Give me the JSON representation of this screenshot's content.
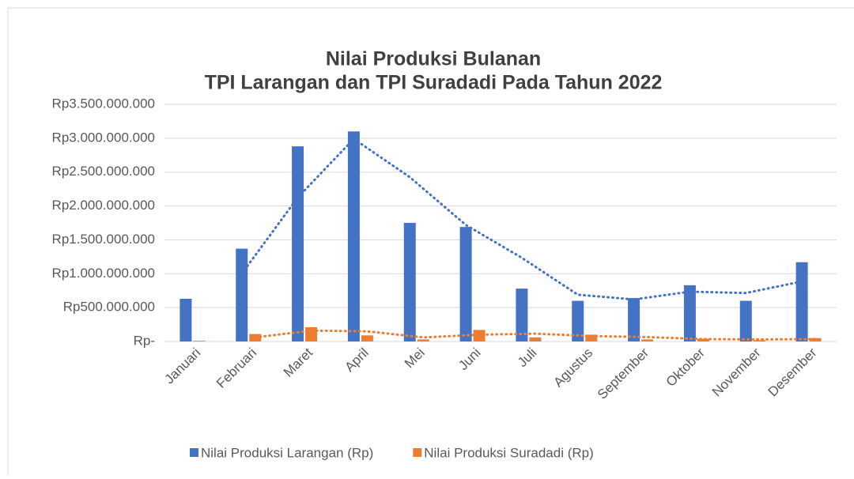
{
  "chart_data": {
    "type": "bar",
    "title": "Nilai Produksi Bulanan",
    "subtitle": "TPI Larangan dan TPI Suradadi Pada Tahun 2022",
    "categories": [
      "Januari",
      "Februari",
      "Maret",
      "April",
      "Mei",
      "Juni",
      "Juli",
      "Agustus",
      "September",
      "Oktober",
      "November",
      "Desember"
    ],
    "series": [
      {
        "name": "Nilai Produksi Larangan (Rp)",
        "color": "#4472c4",
        "values": [
          630000000,
          1370000000,
          2880000000,
          3100000000,
          1750000000,
          1690000000,
          780000000,
          600000000,
          640000000,
          830000000,
          600000000,
          1170000000
        ]
      },
      {
        "name": "Nilai Produksi Suradadi (Rp)",
        "color": "#ed7d31",
        "values": [
          10000000,
          110000000,
          210000000,
          90000000,
          30000000,
          170000000,
          60000000,
          100000000,
          30000000,
          40000000,
          20000000,
          50000000
        ]
      }
    ],
    "ylim": [
      0,
      3500000000
    ],
    "yticks": [
      {
        "value": 0,
        "label": "Rp-"
      },
      {
        "value": 500000000,
        "label": "Rp500.000.000"
      },
      {
        "value": 1000000000,
        "label": "Rp1.000.000.000"
      },
      {
        "value": 1500000000,
        "label": "Rp1.500.000.000"
      },
      {
        "value": 2000000000,
        "label": "Rp2.000.000.000"
      },
      {
        "value": 2500000000,
        "label": "Rp2.500.000.000"
      },
      {
        "value": 3000000000,
        "label": "Rp3.000.000.000"
      },
      {
        "value": 3500000000,
        "label": "Rp3.500.000.000"
      }
    ],
    "grid": true,
    "trendline": "moving average",
    "legend": "bottom"
  }
}
